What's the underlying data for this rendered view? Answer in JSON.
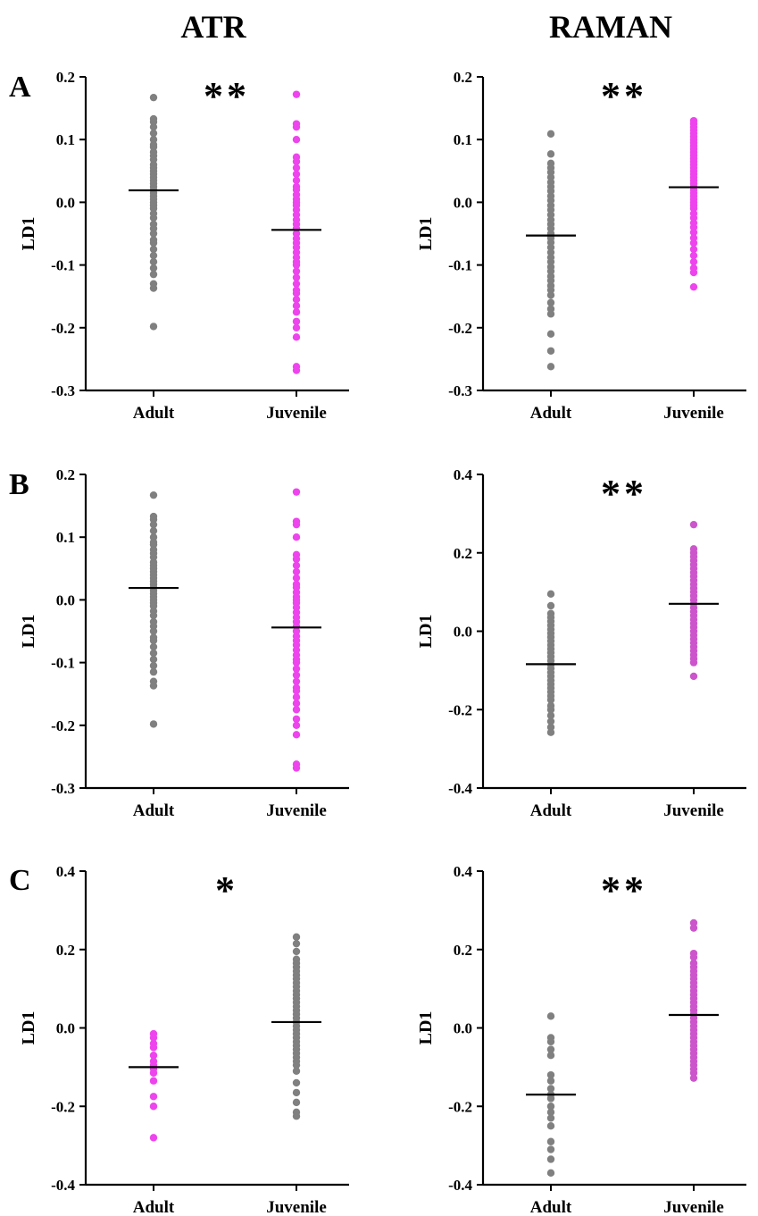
{
  "figure": {
    "column_titles": [
      "ATR",
      "RAMAN"
    ],
    "row_labels": [
      "A",
      "B",
      "C"
    ]
  },
  "colors": {
    "adult_gray": "#808080",
    "juvenile_magenta": "#ee44ee",
    "juvenile_purple": "#cc55cc",
    "axis": "#000000",
    "mean_line": "#000000"
  },
  "chart_data": [
    {
      "id": "A-ATR",
      "type": "scatter",
      "title": "",
      "ylabel": "LD1",
      "ylim": [
        -0.3,
        0.2
      ],
      "yticks": [
        0.2,
        0.1,
        0.0,
        -0.1,
        -0.2,
        -0.3
      ],
      "ytick_labels": [
        "0.2",
        "0.1",
        "0.0",
        "-0.1",
        "-0.2",
        "-0.3"
      ],
      "categories": [
        "Adult",
        "Juvenile"
      ],
      "significance": "**",
      "series": [
        {
          "category": "Adult",
          "color": "#808080",
          "mean": 0.019,
          "values": [
            0.167,
            0.133,
            0.128,
            0.12,
            0.11,
            0.1,
            0.092,
            0.088,
            0.08,
            0.074,
            0.068,
            0.06,
            0.055,
            0.05,
            0.045,
            0.04,
            0.035,
            0.03,
            0.025,
            0.02,
            0.015,
            0.01,
            0.005,
            0.0,
            -0.005,
            -0.01,
            -0.018,
            -0.025,
            -0.035,
            -0.042,
            -0.05,
            -0.06,
            -0.065,
            -0.075,
            -0.085,
            -0.095,
            -0.105,
            -0.115,
            -0.13,
            -0.137,
            -0.198
          ]
        },
        {
          "category": "Juvenile",
          "color": "#ee44ee",
          "mean": -0.044,
          "values": [
            0.172,
            0.125,
            0.12,
            0.1,
            0.072,
            0.065,
            0.055,
            0.045,
            0.035,
            0.025,
            0.02,
            0.012,
            0.005,
            0.0,
            -0.005,
            -0.012,
            -0.02,
            -0.028,
            -0.035,
            -0.042,
            -0.05,
            -0.058,
            -0.065,
            -0.072,
            -0.08,
            -0.088,
            -0.095,
            -0.1,
            -0.11,
            -0.12,
            -0.13,
            -0.14,
            -0.145,
            -0.155,
            -0.165,
            -0.175,
            -0.19,
            -0.2,
            -0.215,
            -0.262,
            -0.268
          ]
        }
      ]
    },
    {
      "id": "A-RAMAN",
      "type": "scatter",
      "title": "",
      "ylabel": "LD1",
      "ylim": [
        -0.3,
        0.2
      ],
      "yticks": [
        0.2,
        0.1,
        0.0,
        -0.1,
        -0.2,
        -0.3
      ],
      "ytick_labels": [
        "0.2",
        "0.1",
        "0.0",
        "-0.1",
        "-0.2",
        "-0.3"
      ],
      "categories": [
        "Adult",
        "Juvenile"
      ],
      "significance": "**",
      "series": [
        {
          "category": "Adult",
          "color": "#808080",
          "mean": -0.053,
          "values": [
            0.109,
            0.077,
            0.062,
            0.055,
            0.048,
            0.04,
            0.032,
            0.025,
            0.018,
            0.01,
            0.003,
            -0.005,
            -0.012,
            -0.02,
            -0.028,
            -0.035,
            -0.042,
            -0.05,
            -0.057,
            -0.064,
            -0.072,
            -0.08,
            -0.088,
            -0.095,
            -0.103,
            -0.11,
            -0.118,
            -0.125,
            -0.133,
            -0.14,
            -0.148,
            -0.16,
            -0.17,
            -0.178,
            -0.21,
            -0.237,
            -0.262
          ]
        },
        {
          "category": "Juvenile",
          "color": "#ee44ee",
          "mean": 0.024,
          "values": [
            0.13,
            0.125,
            0.12,
            0.115,
            0.11,
            0.105,
            0.1,
            0.095,
            0.09,
            0.085,
            0.08,
            0.075,
            0.07,
            0.065,
            0.06,
            0.055,
            0.05,
            0.045,
            0.04,
            0.035,
            0.03,
            0.025,
            0.02,
            0.015,
            0.01,
            0.005,
            0.0,
            -0.005,
            -0.01,
            -0.018,
            -0.025,
            -0.033,
            -0.04,
            -0.048,
            -0.057,
            -0.065,
            -0.075,
            -0.085,
            -0.095,
            -0.105,
            -0.112,
            -0.135
          ]
        }
      ]
    },
    {
      "id": "B-ATR",
      "type": "scatter",
      "title": "",
      "ylabel": "LD1",
      "ylim": [
        -0.3,
        0.2
      ],
      "yticks": [
        0.2,
        0.1,
        0.0,
        -0.1,
        -0.2,
        -0.3
      ],
      "ytick_labels": [
        "0.2",
        "0.1",
        "0.0",
        "-0.1",
        "-0.2",
        "-0.3"
      ],
      "categories": [
        "Adult",
        "Juvenile"
      ],
      "significance": "",
      "series": [
        {
          "category": "Adult",
          "color": "#808080",
          "mean": 0.019,
          "values": [
            0.167,
            0.133,
            0.128,
            0.12,
            0.11,
            0.1,
            0.092,
            0.088,
            0.08,
            0.074,
            0.068,
            0.06,
            0.055,
            0.05,
            0.045,
            0.04,
            0.035,
            0.03,
            0.025,
            0.02,
            0.015,
            0.01,
            0.005,
            0.0,
            -0.005,
            -0.01,
            -0.018,
            -0.025,
            -0.035,
            -0.042,
            -0.05,
            -0.06,
            -0.065,
            -0.075,
            -0.085,
            -0.095,
            -0.105,
            -0.115,
            -0.13,
            -0.137,
            -0.198
          ]
        },
        {
          "category": "Juvenile",
          "color": "#ee44ee",
          "mean": -0.044,
          "values": [
            0.172,
            0.125,
            0.12,
            0.1,
            0.072,
            0.065,
            0.055,
            0.045,
            0.035,
            0.025,
            0.02,
            0.012,
            0.005,
            0.0,
            -0.005,
            -0.012,
            -0.02,
            -0.028,
            -0.035,
            -0.042,
            -0.05,
            -0.058,
            -0.065,
            -0.072,
            -0.08,
            -0.088,
            -0.095,
            -0.1,
            -0.11,
            -0.12,
            -0.13,
            -0.14,
            -0.145,
            -0.155,
            -0.165,
            -0.175,
            -0.19,
            -0.2,
            -0.215,
            -0.262,
            -0.268
          ]
        }
      ]
    },
    {
      "id": "B-RAMAN",
      "type": "scatter",
      "title": "",
      "ylabel": "LD1",
      "ylim": [
        -0.4,
        0.4
      ],
      "yticks": [
        0.4,
        0.2,
        0.0,
        -0.2,
        -0.4
      ],
      "ytick_labels": [
        "0.4",
        "0.2",
        "0.0",
        "-0.2",
        "-0.4"
      ],
      "categories": [
        "Adult",
        "Juvenile"
      ],
      "significance": "**",
      "series": [
        {
          "category": "Adult",
          "color": "#808080",
          "mean": -0.084,
          "values": [
            0.095,
            0.065,
            0.045,
            0.035,
            0.025,
            0.015,
            0.005,
            -0.005,
            -0.015,
            -0.025,
            -0.035,
            -0.045,
            -0.055,
            -0.065,
            -0.075,
            -0.085,
            -0.095,
            -0.105,
            -0.115,
            -0.125,
            -0.135,
            -0.145,
            -0.155,
            -0.165,
            -0.175,
            -0.19,
            -0.2,
            -0.215,
            -0.23,
            -0.245,
            -0.258
          ]
        },
        {
          "category": "Juvenile",
          "color": "#cc55cc",
          "mean": 0.07,
          "values": [
            0.272,
            0.21,
            0.2,
            0.19,
            0.18,
            0.17,
            0.16,
            0.15,
            0.14,
            0.13,
            0.12,
            0.11,
            0.1,
            0.09,
            0.08,
            0.07,
            0.06,
            0.05,
            0.04,
            0.03,
            0.02,
            0.01,
            0.0,
            -0.01,
            -0.02,
            -0.03,
            -0.04,
            -0.05,
            -0.06,
            -0.07,
            -0.08,
            -0.115
          ]
        }
      ]
    },
    {
      "id": "C-ATR",
      "type": "scatter",
      "title": "",
      "ylabel": "LD1",
      "ylim": [
        -0.4,
        0.4
      ],
      "yticks": [
        0.4,
        0.2,
        0.0,
        -0.2,
        -0.4
      ],
      "ytick_labels": [
        "0.4",
        "0.2",
        "0.0",
        "-0.2",
        "-0.4"
      ],
      "categories": [
        "Adult",
        "Juvenile"
      ],
      "significance": "*",
      "series": [
        {
          "category": "Adult",
          "color": "#ee44ee",
          "mean": -0.1,
          "values": [
            -0.015,
            -0.025,
            -0.04,
            -0.05,
            -0.07,
            -0.085,
            -0.095,
            -0.105,
            -0.115,
            -0.135,
            -0.175,
            -0.2,
            -0.28
          ]
        },
        {
          "category": "Juvenile",
          "color": "#808080",
          "mean": 0.015,
          "values": [
            0.232,
            0.215,
            0.195,
            0.175,
            0.165,
            0.155,
            0.145,
            0.135,
            0.125,
            0.115,
            0.105,
            0.095,
            0.085,
            0.075,
            0.065,
            0.055,
            0.045,
            0.035,
            0.025,
            0.015,
            0.005,
            -0.005,
            -0.015,
            -0.025,
            -0.035,
            -0.045,
            -0.055,
            -0.065,
            -0.075,
            -0.085,
            -0.095,
            -0.11,
            -0.14,
            -0.165,
            -0.19,
            -0.215,
            -0.225
          ]
        }
      ]
    },
    {
      "id": "C-RAMAN",
      "type": "scatter",
      "title": "",
      "ylabel": "LD1",
      "ylim": [
        -0.4,
        0.4
      ],
      "yticks": [
        0.4,
        0.2,
        0.0,
        -0.2,
        -0.4
      ],
      "ytick_labels": [
        "0.4",
        "0.2",
        "0.0",
        "-0.2",
        "-0.4"
      ],
      "categories": [
        "Adult",
        "Juvenile"
      ],
      "significance": "**",
      "series": [
        {
          "category": "Adult",
          "color": "#808080",
          "mean": -0.17,
          "values": [
            0.03,
            -0.025,
            -0.035,
            -0.055,
            -0.07,
            -0.12,
            -0.135,
            -0.155,
            -0.17,
            -0.18,
            -0.2,
            -0.215,
            -0.23,
            -0.25,
            -0.29,
            -0.31,
            -0.335,
            -0.37
          ]
        },
        {
          "category": "Juvenile",
          "color": "#cc55cc",
          "mean": 0.033,
          "values": [
            0.268,
            0.255,
            0.19,
            0.18,
            0.165,
            0.155,
            0.145,
            0.135,
            0.125,
            0.115,
            0.105,
            0.095,
            0.085,
            0.075,
            0.065,
            0.055,
            0.045,
            0.035,
            0.025,
            0.015,
            0.005,
            -0.005,
            -0.015,
            -0.025,
            -0.035,
            -0.045,
            -0.055,
            -0.065,
            -0.075,
            -0.085,
            -0.095,
            -0.105,
            -0.115,
            -0.128
          ]
        }
      ]
    }
  ]
}
